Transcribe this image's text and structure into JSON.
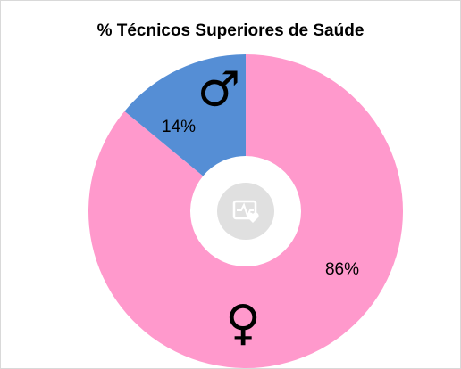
{
  "chart_data": {
    "type": "donut",
    "title": "% Técnicos Superiores de Saúde",
    "series": [
      {
        "color": "#ff99cc",
        "values": [
          86
        ],
        "value_labels": [
          "86%"
        ]
      },
      {
        "color": "#558ed5",
        "values": [
          14
        ],
        "value_labels": [
          "14%"
        ]
      }
    ],
    "annotations": [
      "♀",
      "♂"
    ]
  }
}
